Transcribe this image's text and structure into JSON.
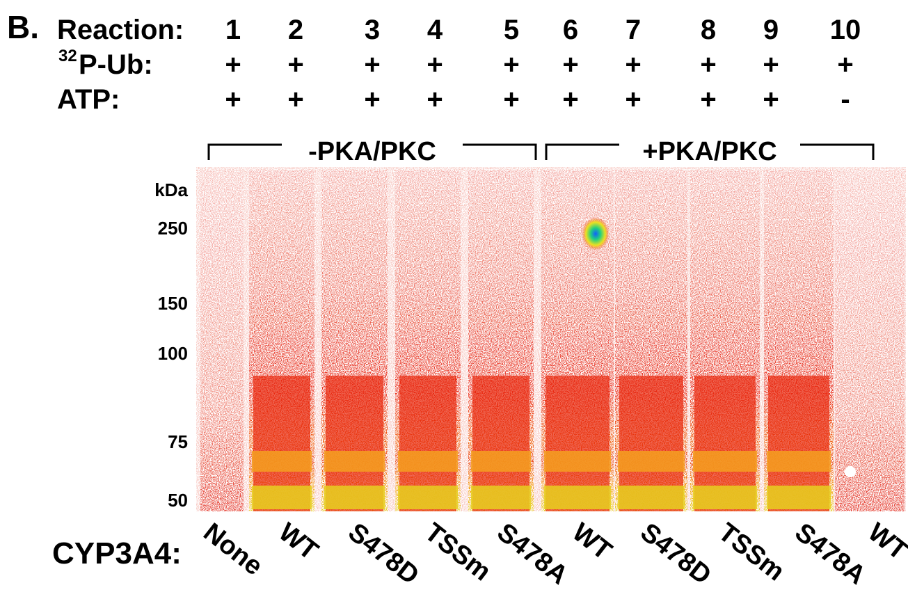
{
  "panel_label": "B.",
  "rows": [
    {
      "label": "Reaction:",
      "values": [
        "1",
        "2",
        "3",
        "4",
        "5",
        "6",
        "7",
        "8",
        "9",
        "10"
      ]
    },
    {
      "label_superscript": "32",
      "label": "P-Ub:",
      "values": [
        "+",
        "+",
        "+",
        "+",
        "+",
        "+",
        "+",
        "+",
        "+",
        "+"
      ]
    },
    {
      "label": "ATP:",
      "values": [
        "+",
        "+",
        "+",
        "+",
        "+",
        "+",
        "+",
        "+",
        "+",
        "-"
      ]
    }
  ],
  "groups": [
    "-PKA/PKC",
    "+PKA/PKC"
  ],
  "markers": {
    "unit": "kDa",
    "labels": [
      "250",
      "150",
      "100",
      "75",
      "50"
    ]
  },
  "cyp3a4": {
    "label": "CYP3A4:",
    "lanes": [
      "None",
      "WT",
      "S478D",
      "TSSm",
      "S478A",
      "WT",
      "S478D",
      "TSSm",
      "S478A",
      "WT"
    ]
  }
}
